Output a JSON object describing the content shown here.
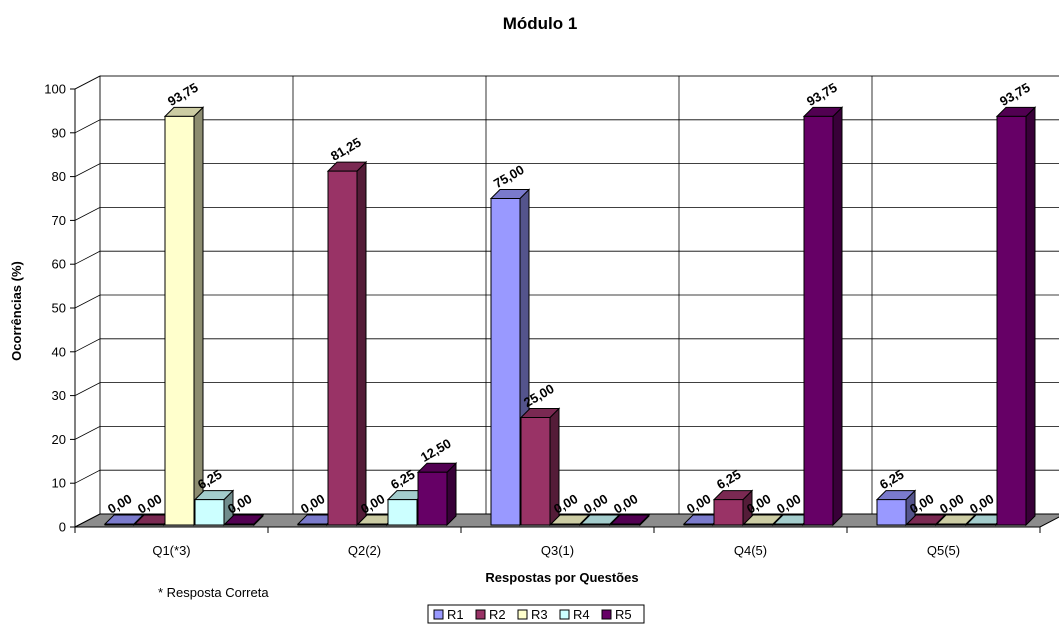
{
  "chart_data": {
    "type": "bar",
    "title": "Módulo 1",
    "xlabel": "Respostas por Questões",
    "ylabel": "Ocorrências (%)",
    "ylim": [
      0,
      100
    ],
    "yticks": [
      "0",
      "10",
      "20",
      "30",
      "40",
      "50",
      "60",
      "70",
      "80",
      "90",
      "100"
    ],
    "grid": true,
    "legend_position": "bottom",
    "categories": [
      "Q1(*3)",
      "Q2(2)",
      "Q3(1)",
      "Q4(5)",
      "Q5(5)"
    ],
    "series": [
      {
        "name": "R1",
        "color": "#9999ff",
        "values": [
          0,
          0,
          75,
          0,
          6.25
        ],
        "labels": [
          "0,00",
          "0,00",
          "75,00",
          "0,00",
          "6,25"
        ]
      },
      {
        "name": "R2",
        "color": "#993366",
        "values": [
          0,
          81.25,
          25,
          6.25,
          0
        ],
        "labels": [
          "0,00",
          "81,25",
          "25,00",
          "6,25",
          "0,00"
        ]
      },
      {
        "name": "R3",
        "color": "#ffffcc",
        "values": [
          93.75,
          0,
          0,
          0,
          0
        ],
        "labels": [
          "93,75",
          "0,00",
          "0,00",
          "0,00",
          "0,00"
        ]
      },
      {
        "name": "R4",
        "color": "#ccffff",
        "values": [
          6.25,
          6.25,
          0,
          0,
          0
        ],
        "labels": [
          "6,25",
          "6,25",
          "0,00",
          "0,00",
          "0,00"
        ]
      },
      {
        "name": "R5",
        "color": "#660066",
        "values": [
          0,
          12.5,
          0,
          93.75,
          93.75
        ],
        "labels": [
          "0,00",
          "12,50",
          "0,00",
          "93,75",
          "93,75"
        ]
      }
    ],
    "note": "* Resposta Correta"
  }
}
